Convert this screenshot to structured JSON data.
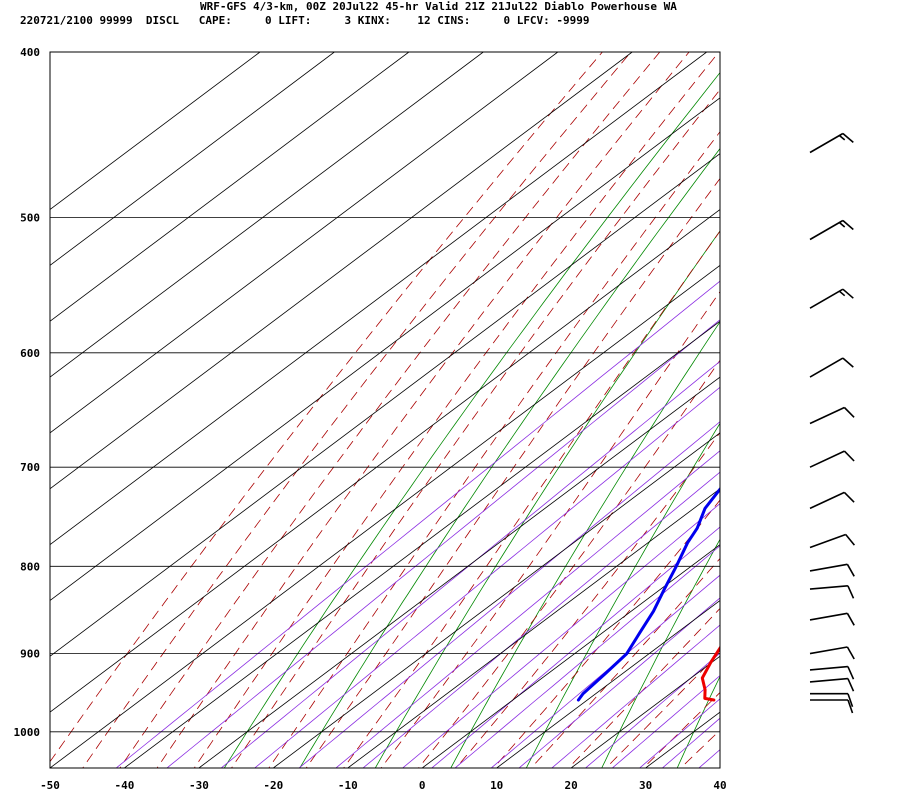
{
  "header": {
    "line1": "WRF-GFS 4/3-km, 00Z 20Jul22 45-hr Valid 21Z 21Jul22 Diablo Powerhouse WA",
    "line2": "220721/2100 99999  DISCL   CAPE:     0 LIFT:     3 KINX:    12 CINS:     0 LFCV: -9999"
  },
  "chart_data": {
    "type": "line",
    "subtype": "skew-T log-P sounding",
    "x_ticks": [
      -50,
      -40,
      -30,
      -20,
      -10,
      0,
      10,
      20,
      30,
      40
    ],
    "y_ticks": [
      400,
      500,
      600,
      700,
      800,
      900,
      1000
    ],
    "xlim": [
      -50,
      40
    ],
    "ylim": [
      1050,
      400
    ],
    "ylog": true,
    "grid": true,
    "series": [
      {
        "color": "#ee0000",
        "points": [
          {
            "p": 958,
            "t": 27.0
          },
          {
            "p": 956,
            "t": 25.5
          },
          {
            "p": 945,
            "t": 24.0
          },
          {
            "p": 930,
            "t": 21.5
          },
          {
            "p": 910,
            "t": 19.8
          },
          {
            "p": 880,
            "t": 17.5
          },
          {
            "p": 850,
            "t": 15.0
          },
          {
            "p": 800,
            "t": 11.0
          },
          {
            "p": 775,
            "t": 9.0
          },
          {
            "p": 750,
            "t": 7.0
          },
          {
            "p": 725,
            "t": 5.5
          },
          {
            "p": 700,
            "t": 4.0
          },
          {
            "p": 680,
            "t": 2.3
          },
          {
            "p": 660,
            "t": 0.3
          },
          {
            "p": 650,
            "t": -0.5
          },
          {
            "p": 625,
            "t": -2.5
          },
          {
            "p": 600,
            "t": -4.6
          },
          {
            "p": 575,
            "t": -7.0
          },
          {
            "p": 550,
            "t": -10.0
          },
          {
            "p": 525,
            "t": -13.3
          },
          {
            "p": 500,
            "t": -16.5
          },
          {
            "p": 475,
            "t": -20.2
          },
          {
            "p": 455,
            "t": -23.7
          }
        ]
      },
      {
        "color": "#0000ee",
        "points": [
          {
            "p": 958,
            "t": 8.8
          },
          {
            "p": 950,
            "t": 8.3
          },
          {
            "p": 925,
            "t": 7.7
          },
          {
            "p": 900,
            "t": 7.0
          },
          {
            "p": 875,
            "t": 5.0
          },
          {
            "p": 850,
            "t": 3.0
          },
          {
            "p": 825,
            "t": 0.5
          },
          {
            "p": 800,
            "t": -2.0
          },
          {
            "p": 775,
            "t": -4.7
          },
          {
            "p": 760,
            "t": -6.0
          },
          {
            "p": 740,
            "t": -8.5
          },
          {
            "p": 720,
            "t": -10.0
          },
          {
            "p": 700,
            "t": -12.5
          },
          {
            "p": 680,
            "t": -15.5
          },
          {
            "p": 660,
            "t": -19.0
          },
          {
            "p": 640,
            "t": -22.0
          },
          {
            "p": 620,
            "t": -25.5
          },
          {
            "p": 600,
            "t": -28.0
          },
          {
            "p": 575,
            "t": -31.5
          },
          {
            "p": 565,
            "t": -33.5
          },
          {
            "p": 540,
            "t": -36.0
          },
          {
            "p": 510,
            "t": -38.5
          },
          {
            "p": 500,
            "t": -39.0
          },
          {
            "p": 455,
            "t": -44.0
          }
        ]
      }
    ],
    "wind_barbs": [
      {
        "p": 458,
        "dir": 240,
        "kt": 15
      },
      {
        "p": 515,
        "dir": 240,
        "kt": 15
      },
      {
        "p": 565,
        "dir": 240,
        "kt": 15
      },
      {
        "p": 620,
        "dir": 240,
        "kt": 10
      },
      {
        "p": 660,
        "dir": 245,
        "kt": 10
      },
      {
        "p": 700,
        "dir": 245,
        "kt": 10
      },
      {
        "p": 740,
        "dir": 245,
        "kt": 10
      },
      {
        "p": 780,
        "dir": 250,
        "kt": 10
      },
      {
        "p": 805,
        "dir": 260,
        "kt": 10
      },
      {
        "p": 825,
        "dir": 265,
        "kt": 10
      },
      {
        "p": 860,
        "dir": 260,
        "kt": 10
      },
      {
        "p": 900,
        "dir": 260,
        "kt": 10
      },
      {
        "p": 920,
        "dir": 265,
        "kt": 10
      },
      {
        "p": 935,
        "dir": 265,
        "kt": 10
      },
      {
        "p": 950,
        "dir": 270,
        "kt": 10
      },
      {
        "p": 958,
        "dir": 270,
        "kt": 10
      }
    ],
    "colors": {
      "isotherm": "#000000",
      "dry_adiabat": "#008800",
      "moist_adiabat": "#aa0000",
      "mixing_ratio": "#8a2be2"
    }
  }
}
